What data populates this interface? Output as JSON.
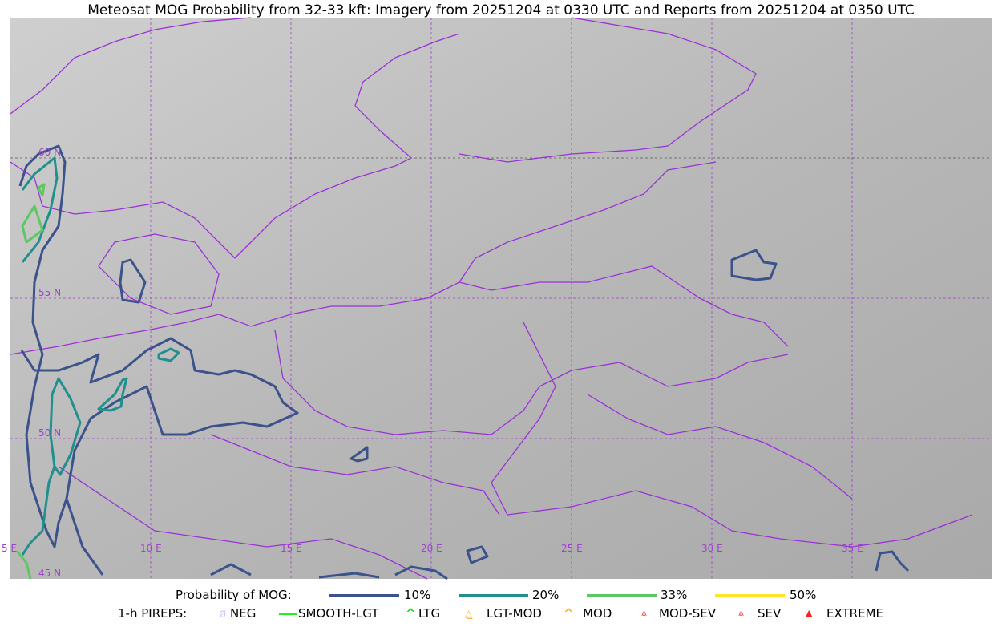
{
  "title": "Meteosat MOG Probability from 32-33 kft: Imagery from 20251204 at 0330 UTC and Reports from 20251204 at 0350 UTC",
  "map": {
    "lat_labels": [
      "60 N",
      "55 N",
      "50 N",
      "45 N"
    ],
    "lon_labels": [
      "5 E",
      "10 E",
      "15 E",
      "20 E",
      "25 E",
      "30 E",
      "35 E"
    ],
    "border_color": "#9b30d9",
    "gridline_color": "#a040d0"
  },
  "legend": {
    "probability_title": "Probability of MOG:",
    "probabilities": [
      {
        "label": "10%",
        "color": "#3b528b"
      },
      {
        "label": "20%",
        "color": "#21908d"
      },
      {
        "label": "33%",
        "color": "#5dc863"
      },
      {
        "label": "50%",
        "color": "#fde725"
      }
    ],
    "pireps_title": "1-h PIREPS:",
    "pireps": [
      {
        "label": "NEG",
        "icon": "neg-circle-icon",
        "color": "#c8c8ff"
      },
      {
        "label": "SMOOTH-LGT",
        "icon": "line-icon",
        "color": "#22ee22"
      },
      {
        "label": "LTG",
        "icon": "caret-icon",
        "color": "#11dd11"
      },
      {
        "label": "LGT-MOD",
        "icon": "caret-bar-icon",
        "color": "#ffb020"
      },
      {
        "label": "MOD",
        "icon": "caret-icon",
        "color": "#ffb020"
      },
      {
        "label": "MOD-SEV",
        "icon": "double-caret-bar-icon",
        "color": "#ff3030"
      },
      {
        "label": "SEV",
        "icon": "double-caret-icon",
        "color": "#ff3030"
      },
      {
        "label": "EXTREME",
        "icon": "filled-triangle-icon",
        "color": "#ff2020"
      }
    ]
  }
}
